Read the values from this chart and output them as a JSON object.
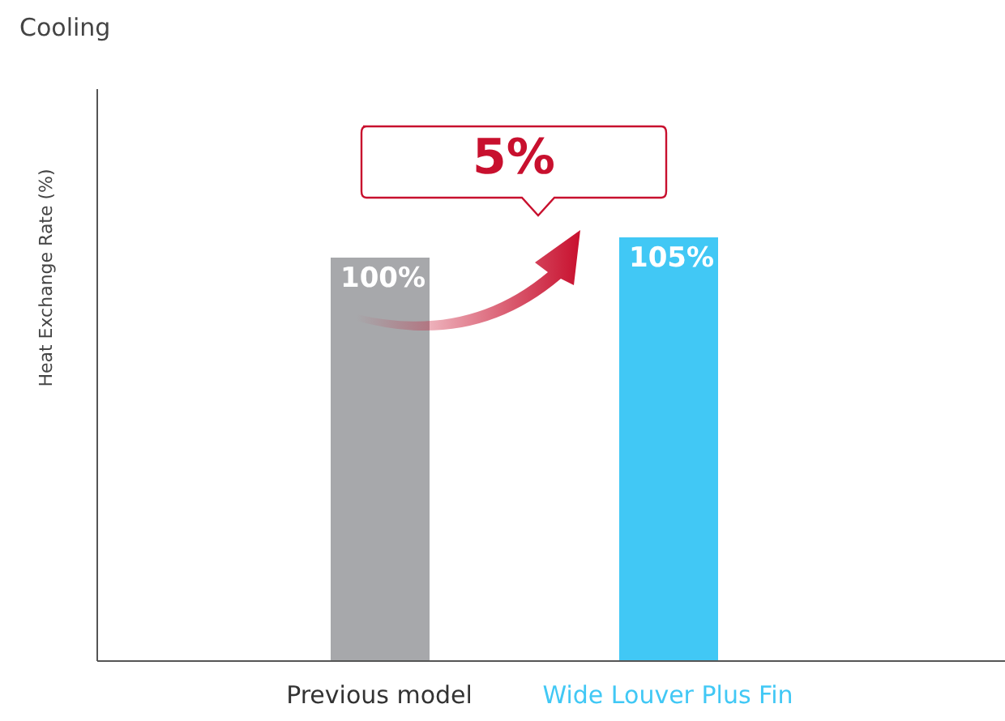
{
  "chart_data": {
    "type": "bar",
    "title": "Cooling",
    "ylabel": "Heat Exchange Rate (%)",
    "categories": [
      "Previous model",
      "Wide Louver Plus Fin"
    ],
    "values": [
      100,
      105
    ],
    "colors": [
      "#a7a8ab",
      "#41c8f5"
    ],
    "value_labels": [
      "100%",
      "105%"
    ],
    "annotations": [
      "5%"
    ],
    "grid": false,
    "legend": false
  }
}
